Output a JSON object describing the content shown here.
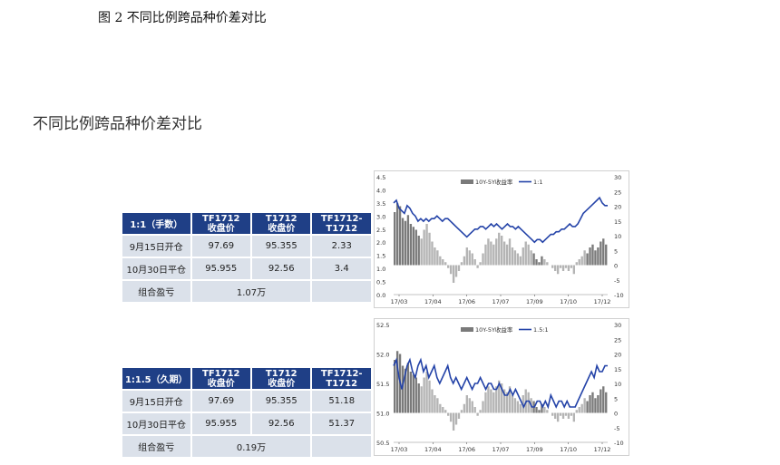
{
  "caption": "图 2  不同比例跨品种价差对比",
  "section_title": "不同比例跨品种价差对比",
  "tables": [
    {
      "headers": [
        "1:1（手数）",
        "TF1712\n收盘价",
        "T1712\n收盘价",
        "TF1712-\nT1712"
      ],
      "rows": [
        [
          "9月15日开仓",
          "97.69",
          "95.355",
          "2.33"
        ],
        [
          "10月30日平仓",
          "95.955",
          "92.56",
          "3.4"
        ]
      ],
      "total_label": "组合盈亏",
      "total_value": "1.07万"
    },
    {
      "headers": [
        "1:1.5（久期）",
        "TF1712\n收盘价",
        "T1712\n收盘价",
        "TF1712-\nT1712"
      ],
      "rows": [
        [
          "9月15日开仓",
          "97.69",
          "95.355",
          "51.18"
        ],
        [
          "10月30日平仓",
          "95.955",
          "92.56",
          "51.37"
        ]
      ],
      "total_label": "组合盈亏",
      "total_value": "0.19万"
    }
  ],
  "chart_data": [
    {
      "type": "bar",
      "legend": [
        "10Y-5Y收益率",
        "1:1"
      ],
      "x_labels": [
        "17/03",
        "17/04",
        "17/06",
        "17/07",
        "17/09",
        "17/10",
        "17/12"
      ],
      "left_ticks": [
        "4.5",
        "4.0",
        "3.5",
        "3.0",
        "2.5",
        "2.0",
        "1.5",
        "1.0",
        "0.5",
        "0.0"
      ],
      "right_ticks": [
        "30",
        "25",
        "20",
        "15",
        "10",
        "5",
        "0",
        "-5",
        "-10"
      ],
      "ylim_left": [
        0,
        4.5
      ],
      "ylim_right": [
        -10,
        30
      ],
      "colors": {
        "bar": "#b4b4b4",
        "bar_dark": "#7a7a7a",
        "line": "#2443a8"
      },
      "bar_values": [
        18,
        21,
        20,
        16,
        15,
        17,
        14,
        13,
        12,
        10,
        9,
        12,
        14,
        11,
        8,
        6,
        5,
        3,
        2,
        1,
        -1,
        -3,
        -6,
        -4,
        -2,
        1,
        3,
        6,
        5,
        4,
        2,
        -1,
        1,
        4,
        7,
        9,
        8,
        7,
        9,
        11,
        10,
        8,
        7,
        9,
        6,
        5,
        4,
        3,
        6,
        8,
        7,
        5,
        4,
        2,
        1,
        3,
        2,
        1,
        0,
        -1,
        -2,
        -3,
        -1,
        -2,
        -1,
        -2,
        -1,
        -3,
        1,
        2,
        3,
        5,
        4,
        6,
        7,
        5,
        6,
        8,
        9,
        7
      ],
      "dark_bar_ranges": [
        [
          0,
          9
        ],
        [
          52,
          55
        ],
        [
          72,
          79
        ]
      ],
      "line_values": [
        3.5,
        3.6,
        3.3,
        3.2,
        3.1,
        3.4,
        3.3,
        3.1,
        3.0,
        2.8,
        2.9,
        2.8,
        2.9,
        2.8,
        2.9,
        2.9,
        3.0,
        2.9,
        2.8,
        2.9,
        2.9,
        2.8,
        2.7,
        2.6,
        2.5,
        2.4,
        2.3,
        2.2,
        2.3,
        2.4,
        2.5,
        2.5,
        2.6,
        2.6,
        2.5,
        2.6,
        2.7,
        2.6,
        2.7,
        2.6,
        2.5,
        2.6,
        2.7,
        2.6,
        2.6,
        2.5,
        2.6,
        2.5,
        2.4,
        2.3,
        2.2,
        2.1,
        2.0,
        2.1,
        2.1,
        2.0,
        2.1,
        2.2,
        2.3,
        2.3,
        2.4,
        2.4,
        2.5,
        2.5,
        2.6,
        2.7,
        2.6,
        2.6,
        2.7,
        2.9,
        3.1,
        3.2,
        3.3,
        3.4,
        3.5,
        3.6,
        3.7,
        3.5,
        3.4,
        3.4
      ]
    },
    {
      "type": "bar",
      "legend": [
        "10Y-5Y收益率",
        "1.5:1"
      ],
      "x_labels": [
        "17/03",
        "17/04",
        "17/06",
        "17/07",
        "17/09",
        "17/10",
        "17/12"
      ],
      "left_ticks": [
        "52.5",
        "52.0",
        "51.5",
        "51.0",
        "50.5"
      ],
      "right_ticks": [
        "30",
        "25",
        "20",
        "15",
        "10",
        "5",
        "0",
        "-5",
        "-10"
      ],
      "ylim_left": [
        50.5,
        52.5
      ],
      "ylim_right": [
        -10,
        30
      ],
      "colors": {
        "bar": "#b4b4b4",
        "bar_dark": "#7a7a7a",
        "line": "#2443a8"
      },
      "bar_values": [
        18,
        21,
        20,
        16,
        15,
        17,
        14,
        13,
        12,
        10,
        9,
        12,
        14,
        11,
        8,
        6,
        5,
        3,
        2,
        1,
        -1,
        -3,
        -6,
        -4,
        -2,
        1,
        3,
        6,
        5,
        4,
        2,
        -1,
        1,
        4,
        7,
        9,
        8,
        7,
        9,
        11,
        10,
        8,
        7,
        9,
        6,
        5,
        4,
        3,
        6,
        8,
        7,
        5,
        4,
        2,
        1,
        3,
        2,
        1,
        0,
        -1,
        -2,
        -3,
        -1,
        -2,
        -1,
        -2,
        -1,
        -3,
        1,
        2,
        3,
        5,
        4,
        6,
        7,
        5,
        6,
        8,
        9,
        7
      ],
      "dark_bar_ranges": [
        [
          0,
          9
        ],
        [
          52,
          55
        ],
        [
          72,
          79
        ]
      ],
      "line_values": [
        51.8,
        51.9,
        51.6,
        51.4,
        51.6,
        51.8,
        51.9,
        51.7,
        51.6,
        51.8,
        51.9,
        51.7,
        51.8,
        51.6,
        51.7,
        51.8,
        51.6,
        51.5,
        51.6,
        51.7,
        51.8,
        51.6,
        51.5,
        51.6,
        51.5,
        51.4,
        51.5,
        51.6,
        51.5,
        51.4,
        51.5,
        51.5,
        51.6,
        51.5,
        51.4,
        51.5,
        51.5,
        51.4,
        51.4,
        51.5,
        51.4,
        51.3,
        51.3,
        51.4,
        51.3,
        51.4,
        51.3,
        51.2,
        51.1,
        51.2,
        51.2,
        51.1,
        51.1,
        51.2,
        51.2,
        51.1,
        51.2,
        51.1,
        51.3,
        51.2,
        51.1,
        51.2,
        51.2,
        51.1,
        51.2,
        51.1,
        51.1,
        51.1,
        51.2,
        51.3,
        51.4,
        51.5,
        51.6,
        51.7,
        51.6,
        51.8,
        51.7,
        51.7,
        51.8,
        51.8
      ]
    }
  ]
}
